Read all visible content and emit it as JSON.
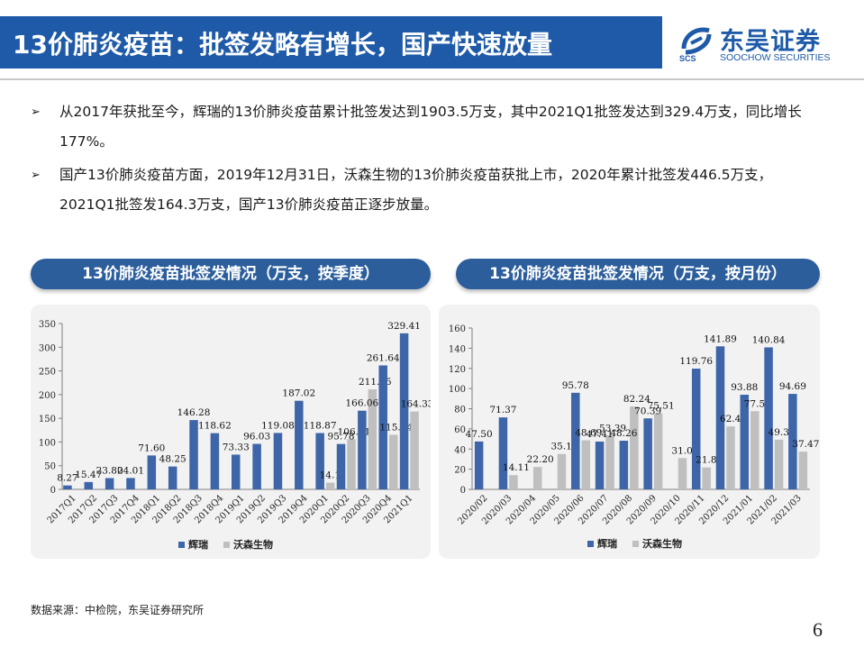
{
  "header": {
    "title": "13价肺炎疫苗：批签发略有增长，国产快速放量",
    "logo_cn": "东吴证券",
    "logo_en": "SOOCHOW SECURITIES",
    "logo_abbr": "SCS"
  },
  "bullets": [
    {
      "marker": "➢",
      "text": "从2017年获批至今，辉瑞的13价肺炎疫苗累计批签发达到1903.5万支，其中2021Q1批签发达到329.4万支，同比增长177%。"
    },
    {
      "marker": "➢",
      "text": "国产13价肺炎疫苗方面，2019年12月31日，沃森生物的13价肺炎疫苗获批上市，2020年累计批签发446.5万支，2021Q1批签发164.3万支，国产13价肺炎疫苗正逐步放量。"
    }
  ],
  "chart_headers": {
    "left": "13价肺炎疫苗批签发情况（万支，按季度）",
    "right": "13价肺炎疫苗批签发情况（万支，按月份）"
  },
  "colors": {
    "pfizer": "#3d65a8",
    "walvax": "#bfbfbf",
    "brand": "#1e5aa8"
  },
  "chart_data": [
    {
      "type": "bar",
      "categories": [
        "2017Q1",
        "2017Q2",
        "2017Q3",
        "2017Q4",
        "2018Q1",
        "2018Q2",
        "2018Q3",
        "2018Q4",
        "2019Q1",
        "2019Q2",
        "2019Q3",
        "2019Q4",
        "2020Q1",
        "2020Q2",
        "2020Q3",
        "2020Q4",
        "2021Q1"
      ],
      "series": [
        {
          "name": "辉瑞",
          "values": [
            8.27,
            15.47,
            23.8,
            24.01,
            71.6,
            48.25,
            146.28,
            118.62,
            73.33,
            96.03,
            119.08,
            187.02,
            118.87,
            95.78,
            166.06,
            261.64,
            329.41
          ]
        },
        {
          "name": "沃森生物",
          "values": [
            null,
            null,
            null,
            null,
            null,
            null,
            null,
            null,
            null,
            null,
            null,
            null,
            14.11,
            106.01,
            211.15,
            115.24,
            164.33
          ]
        }
      ],
      "ylim": [
        0,
        350
      ],
      "yticks": [
        0,
        50,
        100,
        150,
        200,
        250,
        300,
        350
      ],
      "legend": "bottom"
    },
    {
      "type": "bar",
      "categories": [
        "2020/02",
        "2020/03",
        "2020/04",
        "2020/05",
        "2020/06",
        "2020/07",
        "2020/08",
        "2020/09",
        "2020/10",
        "2020/11",
        "2020/12",
        "2021/01",
        "2021/02",
        "2021/03"
      ],
      "series": [
        {
          "name": "辉瑞",
          "values": [
            47.5,
            71.37,
            null,
            null,
            95.78,
            47.41,
            48.26,
            70.39,
            null,
            119.76,
            141.89,
            93.88,
            140.84,
            94.69
          ]
        },
        {
          "name": "沃森生物",
          "values": [
            null,
            14.11,
            22.2,
            35.12,
            48.69,
            53.39,
            82.24,
            75.51,
            31.01,
            21.8,
            62.43,
            77.54,
            49.32,
            37.47
          ]
        }
      ],
      "ylim": [
        0,
        160
      ],
      "yticks": [
        0,
        20,
        40,
        60,
        80,
        100,
        120,
        140,
        160
      ],
      "legend": "bottom"
    }
  ],
  "footer": {
    "source": "数据来源：中检院，东吴证券研究所",
    "page_number": "6"
  }
}
